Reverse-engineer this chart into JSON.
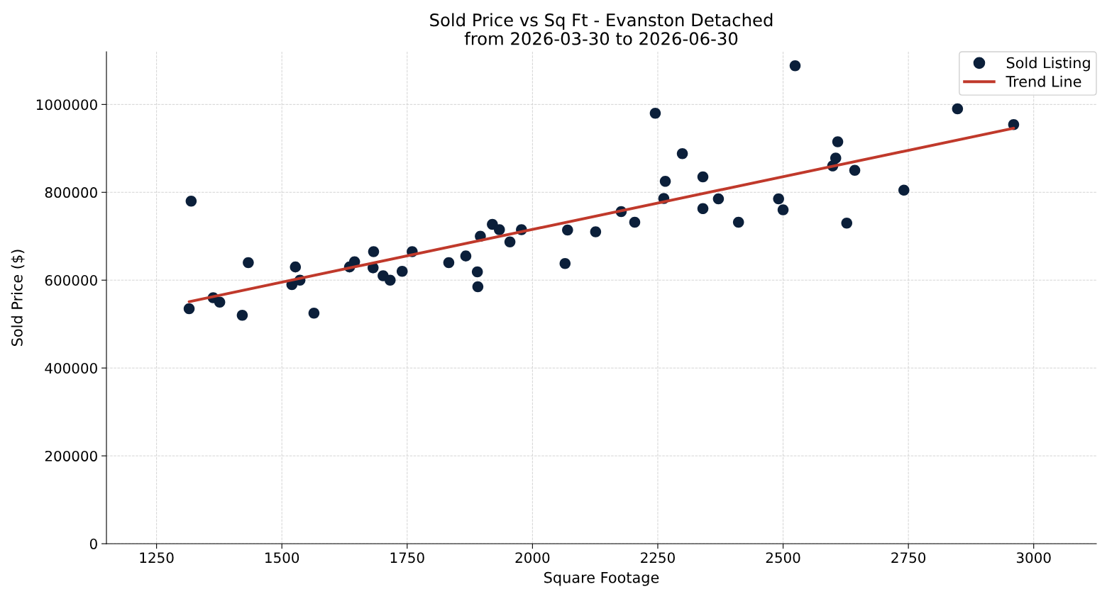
{
  "chart_data": {
    "type": "scatter",
    "title": "Sold Price vs Sq Ft - Evanston Detached\nfrom 2026-03-30 to 2026-06-30",
    "xlabel": "Square Footage",
    "ylabel": "Sold Price ($)",
    "series": [
      {
        "name": "Sold Listing",
        "color": "#0b1f3a",
        "marker": "circle",
        "x": [
          1315,
          1319,
          1363,
          1376,
          1421,
          1433,
          1520,
          1527,
          1536,
          1564,
          1635,
          1645,
          1683,
          1682,
          1702,
          1716,
          1740,
          1760,
          1833,
          1867,
          1890,
          1891,
          1896,
          1920,
          1934,
          1955,
          1978,
          2065,
          2070,
          2126,
          2177,
          2204,
          2245,
          2262,
          2265,
          2299,
          2340,
          2340,
          2371,
          2411,
          2491,
          2500,
          2524,
          2599,
          2605,
          2609,
          2627,
          2643,
          2741,
          2848,
          2960
        ],
        "values": [
          535000,
          780000,
          560000,
          550000,
          520000,
          640000,
          590000,
          630000,
          600000,
          525000,
          630000,
          642000,
          665000,
          628000,
          610000,
          600000,
          620000,
          665000,
          640000,
          655000,
          619000,
          585000,
          700000,
          727000,
          715000,
          687000,
          715000,
          638000,
          714000,
          710000,
          756000,
          732000,
          980000,
          786000,
          825000,
          888000,
          835000,
          763000,
          785000,
          732000,
          785000,
          760000,
          1088000,
          860000,
          878000,
          915000,
          730000,
          850000,
          805000,
          990000,
          954000
        ]
      },
      {
        "name": "Trend Line",
        "type": "line",
        "color": "#c0392b",
        "line_style": "solid",
        "x": [
          1315,
          2960
        ],
        "values": [
          551000,
          946000
        ]
      }
    ],
    "xlim": [
      1150,
      3125
    ],
    "xticks": [
      1250,
      1500,
      1750,
      2000,
      2250,
      2500,
      2750,
      3000
    ],
    "ylim": [
      0,
      1120000
    ],
    "yticks": [
      0,
      200000,
      400000,
      600000,
      800000,
      1000000
    ],
    "grid": true,
    "legend": "top right"
  }
}
